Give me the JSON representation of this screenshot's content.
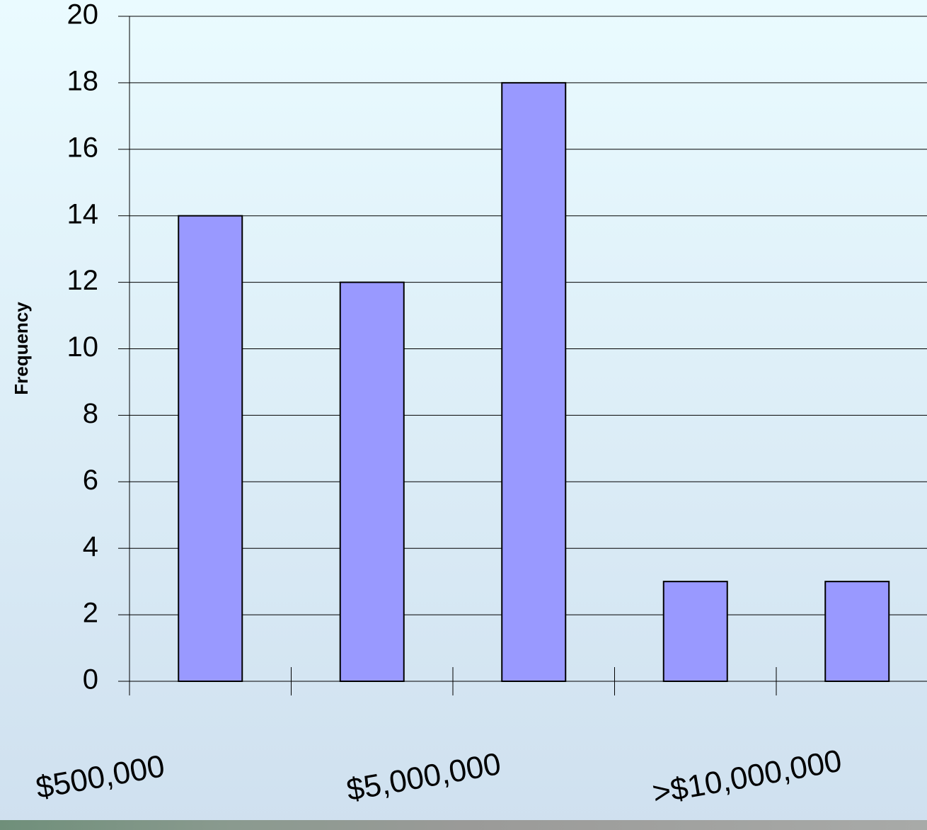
{
  "chart_data": {
    "type": "bar",
    "y_label": "Frequency",
    "categories": [
      "$500,000",
      null,
      "$5,000,000",
      null,
      ">$10,000,000"
    ],
    "values": [
      14,
      12,
      18,
      3,
      3
    ],
    "color": "#9999ff",
    "ylim": [
      0,
      20
    ],
    "yticks": [
      0,
      2,
      4,
      6,
      8,
      10,
      12,
      14,
      16,
      18,
      20
    ],
    "grid": true
  }
}
